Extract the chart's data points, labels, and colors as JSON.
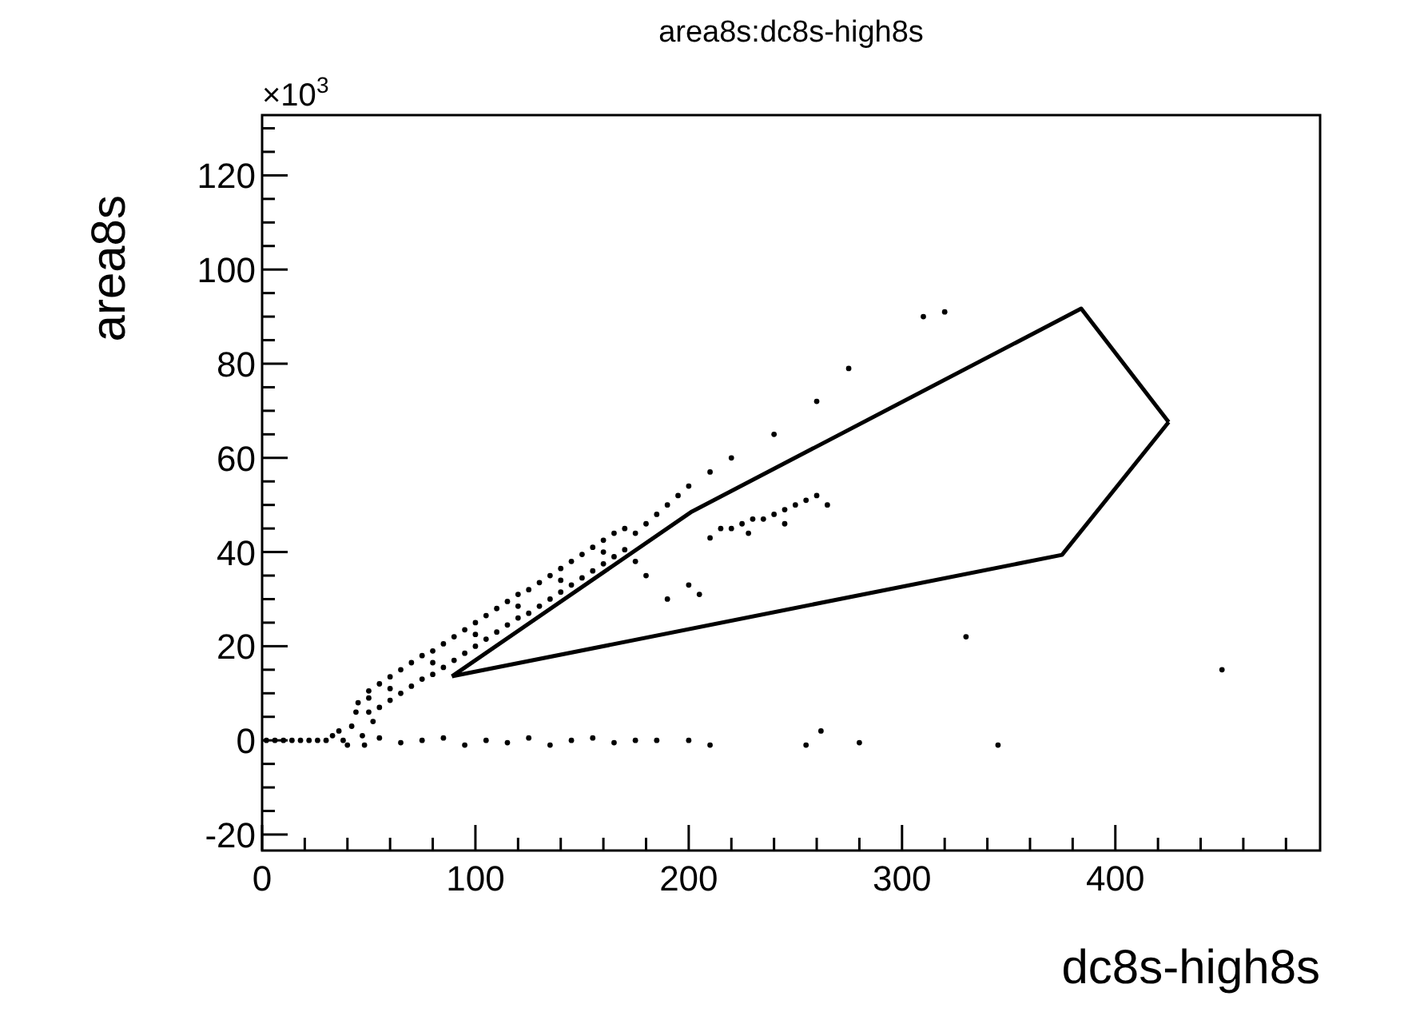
{
  "chart_data": {
    "type": "scatter",
    "title": "area8s:dc8s-high8s",
    "xlabel": "dc8s-high8s",
    "ylabel": "area8s",
    "annotations": [
      "×10$^{3}$"
    ],
    "xlim": [
      0,
      496
    ],
    "ylim": [
      -23.4,
      132.8
    ],
    "xticks": [
      0,
      {
        "value": 20,
        "label": null
      },
      {
        "value": 40,
        "label": null
      },
      {
        "value": 60,
        "label": null
      },
      {
        "value": 80,
        "label": null
      },
      100,
      {
        "value": 120,
        "label": null
      },
      {
        "value": 140,
        "label": null
      },
      {
        "value": 160,
        "label": null
      },
      {
        "value": 180,
        "label": null
      },
      200,
      {
        "value": 220,
        "label": null
      },
      {
        "value": 240,
        "label": null
      },
      {
        "value": 260,
        "label": null
      },
      {
        "value": 280,
        "label": null
      },
      300,
      {
        "value": 320,
        "label": null
      },
      {
        "value": 340,
        "label": null
      },
      {
        "value": 360,
        "label": null
      },
      {
        "value": 380,
        "label": null
      },
      400,
      {
        "value": 420,
        "label": null
      },
      {
        "value": 440,
        "label": null
      },
      {
        "value": 460,
        "label": null
      },
      {
        "value": 480,
        "label": null
      }
    ],
    "yticks": [
      -20,
      {
        "value": -15,
        "label": null
      },
      {
        "value": -10,
        "label": null
      },
      {
        "value": -5,
        "label": null
      },
      0,
      {
        "value": 5,
        "label": null
      },
      {
        "value": 10,
        "label": null
      },
      {
        "value": 15,
        "label": null
      },
      20,
      {
        "value": 25,
        "label": null
      },
      {
        "value": 30,
        "label": null
      },
      {
        "value": 35,
        "label": null
      },
      40,
      {
        "value": 45,
        "label": null
      },
      {
        "value": 50,
        "label": null
      },
      {
        "value": 55,
        "label": null
      },
      60,
      {
        "value": 65,
        "label": null
      },
      {
        "value": 70,
        "label": null
      },
      {
        "value": 75,
        "label": null
      },
      80,
      {
        "value": 85,
        "label": null
      },
      {
        "value": 90,
        "label": null
      },
      {
        "value": 95,
        "label": null
      },
      100,
      {
        "value": 105,
        "label": null
      },
      {
        "value": 110,
        "label": null
      },
      {
        "value": 115,
        "label": null
      },
      120,
      {
        "value": 125,
        "label": null
      },
      {
        "value": 130,
        "label": null
      }
    ],
    "grid": false,
    "marker": "circle",
    "series": [
      {
        "color": "#000000",
        "x": [
          2,
          6,
          10,
          14,
          18,
          22,
          26,
          30,
          33,
          36,
          38,
          40,
          42,
          44,
          45,
          47,
          48,
          50,
          52,
          50,
          50,
          55,
          55,
          60,
          60,
          65,
          65,
          70,
          70,
          75,
          75,
          80,
          80,
          85,
          85,
          90,
          90,
          95,
          95,
          100,
          100,
          105,
          105,
          110,
          110,
          115,
          115,
          120,
          120,
          125,
          125,
          130,
          130,
          135,
          135,
          140,
          140,
          145,
          145,
          150,
          150,
          155,
          155,
          160,
          160,
          165,
          165,
          170,
          170,
          60,
          80,
          100,
          120,
          140,
          160,
          175,
          180,
          185,
          190,
          195,
          200,
          210,
          220,
          240,
          260,
          275,
          310,
          320,
          175,
          180,
          190,
          200,
          205,
          210,
          215,
          220,
          225,
          230,
          235,
          240,
          245,
          250,
          255,
          260,
          265,
          228,
          245,
          55,
          65,
          75,
          85,
          95,
          105,
          115,
          125,
          135,
          145,
          155,
          165,
          175,
          185,
          200,
          210,
          262,
          330,
          345,
          450,
          280,
          255
        ],
        "values": [
          0,
          0,
          0,
          0,
          0,
          0,
          0,
          0,
          1,
          2,
          0,
          -1,
          3,
          6,
          8,
          1,
          -1,
          9,
          4,
          10.5,
          6,
          12,
          7,
          13.5,
          8.5,
          15,
          10,
          16.5,
          11.5,
          18,
          13,
          19,
          14,
          20.5,
          15.5,
          22,
          17,
          23.5,
          18.5,
          25,
          20,
          26.5,
          21.5,
          28,
          23,
          29.5,
          24.5,
          31,
          26,
          32,
          27,
          33.5,
          28.5,
          35,
          30,
          36.5,
          31.5,
          38,
          33,
          39.5,
          34.5,
          41,
          36,
          42.5,
          37.5,
          44,
          39,
          45,
          40.5,
          11,
          16.5,
          22.5,
          28.5,
          34,
          40,
          44,
          46,
          48,
          50,
          52,
          54,
          57,
          60,
          65,
          72,
          79,
          90,
          91,
          38,
          35,
          30,
          33,
          31,
          43,
          45,
          45,
          46,
          47,
          47,
          48,
          49,
          50,
          51,
          52,
          50,
          44,
          46,
          0.5,
          -0.5,
          0,
          0.5,
          -1,
          0,
          -0.5,
          0.5,
          -1,
          0,
          0.5,
          -0.5,
          0,
          0,
          0,
          -1,
          2,
          22,
          -1,
          15,
          -0.5,
          -1
        ]
      },
      {
        "type": "line",
        "color": "#000000",
        "line_style": "solid",
        "marker": "none",
        "x": [
          89,
          201.5,
          384,
          425
        ],
        "values": [
          13.6,
          48.6,
          91.7,
          67.6
        ]
      },
      {
        "type": "line",
        "color": "#000000",
        "line_style": "solid",
        "marker": "none",
        "x": [
          89,
          375,
          425
        ],
        "values": [
          13.6,
          39.4,
          67.6
        ]
      }
    ]
  }
}
